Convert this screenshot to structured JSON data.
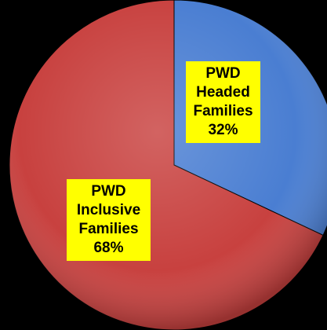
{
  "chart_data": {
    "type": "pie",
    "categories": [
      "PWD Headed Families",
      "PWD Inclusive Families"
    ],
    "values": [
      32,
      68
    ],
    "value_labels": [
      "32%",
      "68%"
    ],
    "colors": [
      "#4a7ed2",
      "#c8413f"
    ]
  }
}
